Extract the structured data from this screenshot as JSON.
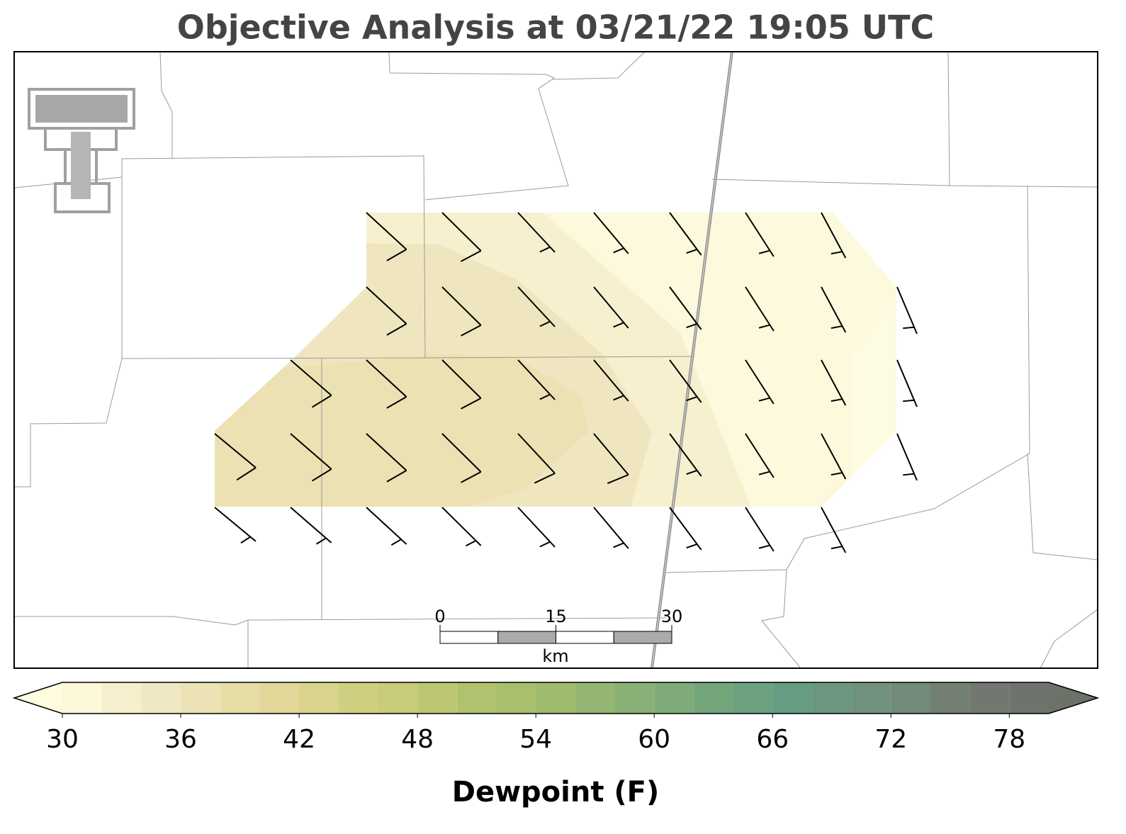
{
  "title": "Objective Analysis at 03/21/22 19:05 UTC",
  "scale_bar": {
    "ticks": [
      0,
      15,
      30
    ],
    "unit": "km"
  },
  "colorbar": {
    "label": "Dewpoint (F)",
    "lim": [
      30,
      80
    ],
    "ticks": [
      30,
      36,
      42,
      48,
      54,
      60,
      66,
      72,
      78
    ],
    "bins": [
      30,
      32,
      34,
      36,
      38,
      40,
      42,
      44,
      46,
      48,
      50,
      52,
      54,
      56,
      58,
      60,
      62,
      64,
      66,
      68,
      70,
      72,
      74,
      76,
      78,
      80
    ],
    "colors": [
      "#fcf8d9",
      "#f5efcd",
      "#f0e8c2",
      "#ebe2b5",
      "#e6dca6",
      "#e1d899",
      "#d9d38c",
      "#d0cf80",
      "#c8cb79",
      "#bcc673",
      "#b1c26e",
      "#a8bf6b",
      "#9eba6d",
      "#94b672",
      "#89b176",
      "#7eab79",
      "#74a67c",
      "#6ba17f",
      "#659c82",
      "#6b9680",
      "#70917d",
      "#728a79",
      "#737f73",
      "#72786f",
      "#6f736d"
    ],
    "under_color": "#fdfbe0",
    "over_color": "#6b7369"
  }
}
